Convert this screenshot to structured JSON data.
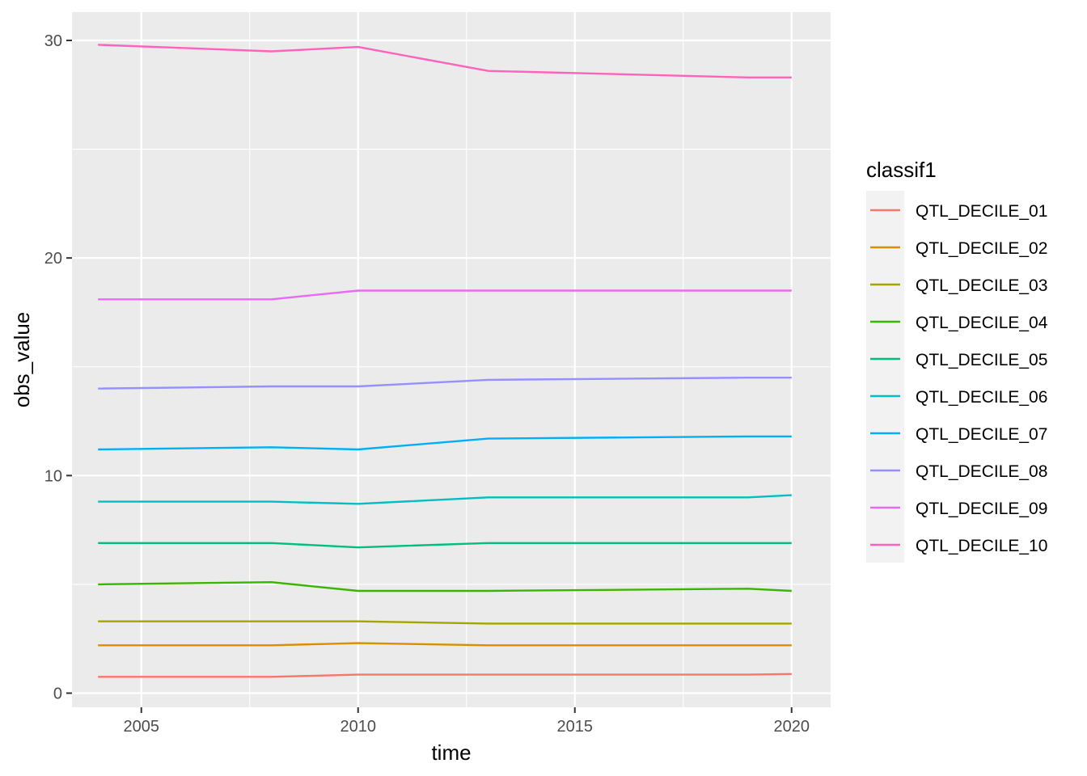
{
  "chart_data": {
    "type": "line",
    "xlabel": "time",
    "ylabel": "obs_value",
    "xlim": [
      2003.4,
      2020.9
    ],
    "ylim": [
      -0.65,
      31.3
    ],
    "x_ticks": [
      2005,
      2010,
      2015,
      2020
    ],
    "y_ticks": [
      0,
      10,
      20,
      30
    ],
    "x_minor": [
      2007.5,
      2012.5,
      2017.5
    ],
    "y_minor": [
      5,
      15,
      25
    ],
    "grid": true,
    "background": "#ebebeb",
    "legend": {
      "title": "classif1",
      "position": "right"
    },
    "x": [
      2004,
      2008,
      2010,
      2013,
      2019,
      2020
    ],
    "series": [
      {
        "name": "QTL_DECILE_01",
        "color": "#F8766D",
        "values": [
          0.75,
          0.75,
          0.85,
          0.85,
          0.85,
          0.88
        ]
      },
      {
        "name": "QTL_DECILE_02",
        "color": "#D89000",
        "values": [
          2.2,
          2.2,
          2.3,
          2.2,
          2.2,
          2.2
        ]
      },
      {
        "name": "QTL_DECILE_03",
        "color": "#A3A500",
        "values": [
          3.3,
          3.3,
          3.3,
          3.2,
          3.2,
          3.2
        ]
      },
      {
        "name": "QTL_DECILE_04",
        "color": "#39B600",
        "values": [
          5.0,
          5.1,
          4.7,
          4.7,
          4.8,
          4.7
        ]
      },
      {
        "name": "QTL_DECILE_05",
        "color": "#00BF7D",
        "values": [
          6.9,
          6.9,
          6.7,
          6.9,
          6.9,
          6.9
        ]
      },
      {
        "name": "QTL_DECILE_06",
        "color": "#00BFC4",
        "values": [
          8.8,
          8.8,
          8.7,
          9.0,
          9.0,
          9.1
        ]
      },
      {
        "name": "QTL_DECILE_07",
        "color": "#00B0F6",
        "values": [
          11.2,
          11.3,
          11.2,
          11.7,
          11.8,
          11.8
        ]
      },
      {
        "name": "QTL_DECILE_08",
        "color": "#9590FF",
        "values": [
          14.0,
          14.1,
          14.1,
          14.4,
          14.5,
          14.5
        ]
      },
      {
        "name": "QTL_DECILE_09",
        "color": "#E76BF3",
        "values": [
          18.1,
          18.1,
          18.5,
          18.5,
          18.5,
          18.5
        ]
      },
      {
        "name": "QTL_DECILE_10",
        "color": "#FF62BC",
        "values": [
          29.8,
          29.5,
          29.7,
          28.6,
          28.3,
          28.3
        ]
      }
    ]
  }
}
